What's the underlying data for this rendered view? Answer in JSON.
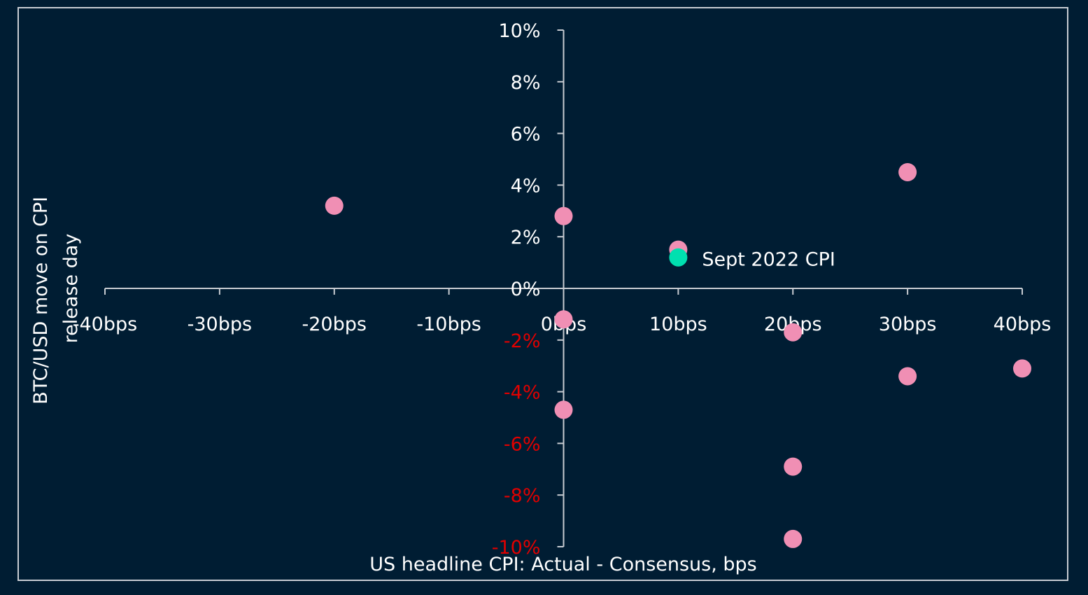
{
  "chart_data": {
    "type": "scatter",
    "title": "",
    "xlabel": "US headline CPI: Actual - Consensus, bps",
    "ylabel_line1": "BTC/USD move on CPI",
    "ylabel_line2": "release day",
    "xlim": [
      -40,
      40
    ],
    "ylim": [
      -10,
      10
    ],
    "x_ticks": [
      -40,
      -30,
      -20,
      -10,
      0,
      10,
      20,
      30,
      40
    ],
    "x_tick_labels": [
      "-40bps",
      "-30bps",
      "-20bps",
      "-10bps",
      "0bps",
      "10bps",
      "20bps",
      "30bps",
      "40bps"
    ],
    "y_ticks": [
      10,
      8,
      6,
      4,
      2,
      0,
      -2,
      -4,
      -6,
      -8,
      -10
    ],
    "y_tick_labels": [
      "10%",
      "8%",
      "6%",
      "4%",
      "2%",
      "0%",
      "-2%",
      "-4%",
      "-6%",
      "-8%",
      "-10%"
    ],
    "grid": false,
    "series": [
      {
        "color": "#f08fb4",
        "points": [
          {
            "x": -20,
            "y": 3.2
          },
          {
            "x": 0,
            "y": 2.8
          },
          {
            "x": 10,
            "y": 1.5
          },
          {
            "x": 0,
            "y": -1.2
          },
          {
            "x": 0,
            "y": -4.7
          },
          {
            "x": 20,
            "y": -1.7
          },
          {
            "x": 20,
            "y": -6.9
          },
          {
            "x": 20,
            "y": -9.7
          },
          {
            "x": 30,
            "y": 4.5
          },
          {
            "x": 30,
            "y": -3.4
          },
          {
            "x": 40,
            "y": -3.1
          }
        ]
      },
      {
        "color": "#00e0b0",
        "points": [
          {
            "x": 10,
            "y": 1.2
          }
        ]
      }
    ],
    "annotations": [
      {
        "text": "Sept 2022 CPI",
        "x": 10,
        "y": 1.2
      }
    ]
  },
  "colors": {
    "background": "#001d33",
    "axis": "#c8ccd2",
    "positive_label": "#ffffff",
    "negative_label": "#e00000",
    "highlight_point": "#00e0b0",
    "point": "#f08fb4"
  }
}
